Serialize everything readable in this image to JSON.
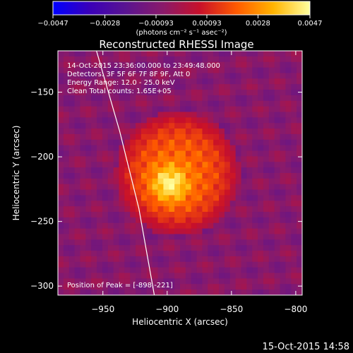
{
  "chart_data": {
    "type": "heatmap",
    "title": "Reconstructed RHESSI Image",
    "xlabel": "Heliocentric X (arcsec)",
    "ylabel": "Heliocentric Y (arcsec)",
    "xlim": [
      -985,
      -795
    ],
    "ylim": [
      -307,
      -118
    ],
    "xticks": [
      -950,
      -900,
      -850,
      -800
    ],
    "xtick_labels": [
      "−950",
      "−900",
      "−850",
      "−800"
    ],
    "yticks": [
      -300,
      -250,
      -200,
      -150
    ],
    "ytick_labels": [
      "−300",
      "−250",
      "−200",
      "−150"
    ],
    "info_lines": [
      "14-Oct-2015 23:36:00.000 to 23:49:48.000",
      "Detectors: 3F 5F 6F 7F 8F 9F, Att 0",
      "Energy Range: 12.0 - 25.0 keV",
      "Clean    Total counts: 1.65E+05"
    ],
    "peak_label": "Position of Peak = [-898,-221]",
    "peak": [
      -898,
      -221
    ],
    "source": {
      "center": [
        -892,
        -213
      ],
      "radius": 48,
      "max": 0.0047
    },
    "limb_curve": [
      [
        -955,
        -118
      ],
      [
        -937,
        -180
      ],
      [
        -922,
        -240
      ],
      [
        -910,
        -307
      ]
    ],
    "colorbar": {
      "vmin": -0.0047,
      "vmax": 0.0047,
      "ticks": [
        -0.0047,
        -0.0028,
        -0.00093,
        0.00093,
        0.0028,
        0.0047
      ],
      "tick_labels": [
        "−0.0047",
        "−0.0028",
        "−0.00093",
        "0.00093",
        "0.0028",
        "0.0047"
      ],
      "units": "(photons cm⁻² s⁻¹ asec⁻²)",
      "colors": [
        "#0000ff",
        "#3a00b8",
        "#5a1490",
        "#8a1a6a",
        "#c8102a",
        "#ff5a00",
        "#ffb400",
        "#ffffa0"
      ]
    }
  },
  "footer": {
    "date": "15-Oct-2015 14:58"
  }
}
